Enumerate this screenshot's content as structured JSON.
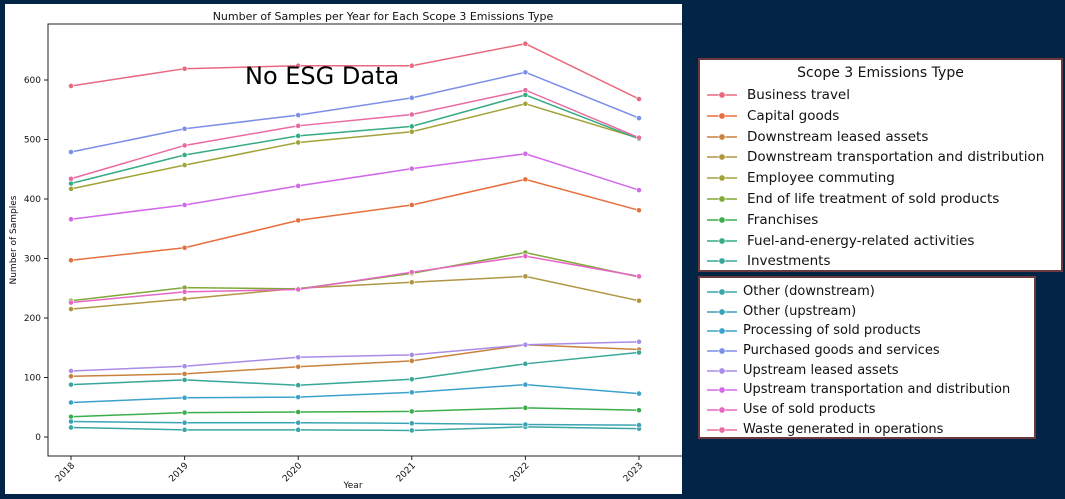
{
  "chart_data": {
    "type": "line",
    "title": "Number of Samples per Year for Each Scope 3 Emissions Type",
    "xlabel": "Year",
    "ylabel": "Number of Samples",
    "x": [
      "2018",
      "2019",
      "2020",
      "2021",
      "2022",
      "2023"
    ],
    "xlim": [
      2018,
      2023
    ],
    "ylim": [
      -20,
      690
    ],
    "yticks": [
      0,
      100,
      200,
      300,
      400,
      500,
      600
    ],
    "grid": false,
    "annotation": "No ESG Data",
    "legend_title": "Scope 3 Emissions Type",
    "legend_placement": "outside-right",
    "series": [
      {
        "name": "Business travel",
        "color": "#e8697f",
        "values": [
          590,
          619,
          624,
          624,
          661,
          568
        ]
      },
      {
        "name": "Capital goods",
        "color": "#e76f3d",
        "values": [
          297,
          318,
          364,
          390,
          433,
          381
        ]
      },
      {
        "name": "Downstream leased assets",
        "color": "#c8823c",
        "values": [
          102,
          106,
          118,
          128,
          155,
          147
        ]
      },
      {
        "name": "Downstream transportation and distribution",
        "color": "#b09643",
        "values": [
          215,
          232,
          250,
          260,
          270,
          229
        ]
      },
      {
        "name": "Employee commuting",
        "color": "#a2a23a",
        "values": [
          417,
          457,
          495,
          513,
          560,
          502
        ]
      },
      {
        "name": "End of life treatment of sold products",
        "color": "#7ea936",
        "values": [
          229,
          251,
          249,
          275,
          310,
          269
        ]
      },
      {
        "name": "Franchises",
        "color": "#3aae4c",
        "values": [
          34,
          41,
          42,
          43,
          49,
          45
        ]
      },
      {
        "name": "Fuel-and-energy-related activities",
        "color": "#36ab85",
        "values": [
          426,
          474,
          506,
          522,
          575,
          501
        ]
      },
      {
        "name": "Investments",
        "color": "#38a799",
        "values": [
          88,
          96,
          87,
          97,
          123,
          142
        ]
      },
      {
        "name": "Other (downstream)",
        "color": "#3aa6a5",
        "values": [
          16,
          12,
          12,
          11,
          17,
          14
        ]
      },
      {
        "name": "Other (upstream)",
        "color": "#3aa4b5",
        "values": [
          26,
          24,
          24,
          23,
          21,
          20
        ]
      },
      {
        "name": "Processing of sold products",
        "color": "#3ca1cb",
        "values": [
          58,
          66,
          67,
          75,
          88,
          73
        ]
      },
      {
        "name": "Purchased goods and services",
        "color": "#7b8ee8",
        "values": [
          479,
          518,
          541,
          570,
          613,
          536
        ]
      },
      {
        "name": "Upstream leased assets",
        "color": "#a98be8",
        "values": [
          111,
          119,
          134,
          138,
          155,
          160
        ]
      },
      {
        "name": "Upstream transportation and distribution",
        "color": "#d268ea",
        "values": [
          366,
          390,
          422,
          451,
          476,
          415
        ]
      },
      {
        "name": "Use of sold products",
        "color": "#e766c4",
        "values": [
          226,
          244,
          248,
          277,
          304,
          270
        ]
      },
      {
        "name": "Waste generated in operations",
        "color": "#ea6aa1",
        "values": [
          434,
          490,
          523,
          542,
          583,
          503
        ]
      }
    ]
  }
}
